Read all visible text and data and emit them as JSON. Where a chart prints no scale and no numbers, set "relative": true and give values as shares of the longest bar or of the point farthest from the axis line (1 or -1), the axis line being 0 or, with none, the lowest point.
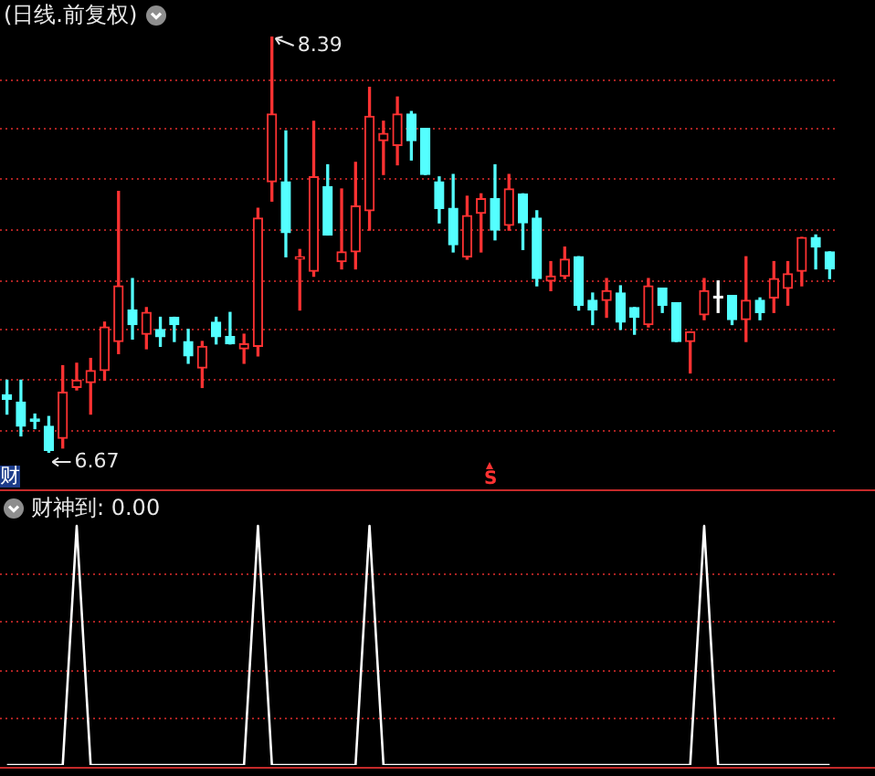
{
  "chart_data": [
    {
      "type": "candlestick",
      "title": "(日线.前复权)",
      "categories": [
        null,
        null,
        null,
        null,
        null,
        null,
        null,
        null,
        null,
        null,
        null,
        null,
        null,
        null,
        null,
        null,
        null,
        null,
        null,
        null,
        null,
        null,
        null,
        null,
        null,
        null,
        null,
        null,
        null,
        null,
        null,
        null,
        null,
        null,
        null,
        null,
        null,
        null,
        null,
        null,
        null,
        null,
        null,
        null,
        null,
        null,
        null,
        null,
        null,
        null,
        null,
        null,
        null,
        null,
        null,
        null,
        null,
        null,
        null,
        null
      ],
      "ohlc": [
        [
          6.91,
          6.97,
          6.83,
          6.89
        ],
        [
          6.88,
          6.97,
          6.74,
          6.78
        ],
        [
          6.81,
          6.83,
          6.77,
          6.8
        ],
        [
          6.78,
          6.82,
          6.67,
          6.68
        ],
        [
          6.73,
          7.03,
          6.69,
          6.92
        ],
        [
          6.94,
          7.04,
          6.93,
          6.97
        ],
        [
          6.96,
          7.06,
          6.83,
          7.01
        ],
        [
          7.01,
          7.21,
          6.97,
          7.19
        ],
        [
          7.13,
          7.75,
          7.08,
          7.36
        ],
        [
          7.26,
          7.39,
          7.14,
          7.2
        ],
        [
          7.16,
          7.27,
          7.1,
          7.25
        ],
        [
          7.18,
          7.23,
          7.11,
          7.15
        ],
        [
          7.23,
          7.23,
          7.13,
          7.2
        ],
        [
          7.13,
          7.18,
          7.04,
          7.07
        ],
        [
          7.02,
          7.13,
          6.94,
          7.11
        ],
        [
          7.21,
          7.23,
          7.12,
          7.15
        ],
        [
          7.15,
          7.25,
          7.12,
          7.12
        ],
        [
          7.1,
          7.16,
          7.04,
          7.12
        ],
        [
          7.11,
          7.68,
          7.07,
          7.64
        ],
        [
          7.79,
          8.39,
          7.71,
          8.07
        ],
        [
          7.79,
          8.0,
          7.48,
          7.58
        ],
        [
          7.47,
          7.51,
          7.26,
          7.48
        ],
        [
          7.42,
          8.04,
          7.4,
          7.81
        ],
        [
          7.77,
          7.86,
          7.57,
          7.57
        ],
        [
          7.46,
          7.76,
          7.43,
          7.5
        ],
        [
          7.5,
          7.87,
          7.43,
          7.69
        ],
        [
          7.67,
          8.18,
          7.59,
          8.06
        ],
        [
          7.96,
          8.04,
          7.82,
          7.99
        ],
        [
          7.94,
          8.14,
          7.86,
          8.07
        ],
        [
          8.07,
          8.08,
          7.88,
          7.96
        ],
        [
          8.01,
          8.01,
          7.82,
          7.82
        ],
        [
          7.79,
          7.81,
          7.62,
          7.68
        ],
        [
          7.68,
          7.82,
          7.5,
          7.53
        ],
        [
          7.48,
          7.73,
          7.47,
          7.65
        ],
        [
          7.66,
          7.74,
          7.5,
          7.72
        ],
        [
          7.72,
          7.86,
          7.55,
          7.59
        ],
        [
          7.61,
          7.82,
          7.59,
          7.76
        ],
        [
          7.74,
          7.74,
          7.51,
          7.62
        ],
        [
          7.64,
          7.67,
          7.36,
          7.39
        ],
        [
          7.38,
          7.46,
          7.34,
          7.4
        ],
        [
          7.4,
          7.52,
          7.39,
          7.47
        ],
        [
          7.48,
          7.48,
          7.26,
          7.28
        ],
        [
          7.3,
          7.33,
          7.2,
          7.26
        ],
        [
          7.3,
          7.39,
          7.23,
          7.34
        ],
        [
          7.33,
          7.36,
          7.18,
          7.21
        ],
        [
          7.27,
          7.27,
          7.16,
          7.23
        ],
        [
          7.2,
          7.39,
          7.19,
          7.36
        ],
        [
          7.35,
          7.35,
          7.25,
          7.28
        ],
        [
          7.29,
          7.29,
          7.13,
          7.13
        ],
        [
          7.13,
          7.17,
          7.0,
          7.17
        ],
        [
          7.24,
          7.39,
          7.22,
          7.34
        ],
        [
          7.31,
          7.38,
          7.25,
          7.31
        ],
        [
          7.32,
          7.32,
          7.2,
          7.22
        ],
        [
          7.22,
          7.48,
          7.13,
          7.3
        ],
        [
          7.3,
          7.31,
          7.22,
          7.25
        ],
        [
          7.31,
          7.46,
          7.25,
          7.39
        ],
        [
          7.35,
          7.46,
          7.28,
          7.41
        ],
        [
          7.42,
          7.56,
          7.36,
          7.56
        ],
        [
          7.56,
          7.57,
          7.43,
          7.52
        ],
        [
          7.5,
          7.5,
          7.39,
          7.43
        ]
      ],
      "colors": [
        "#54ffff",
        "#54ffff",
        "#54ffff",
        "#54ffff",
        "#ff3232",
        "#ff3232",
        "#ff3232",
        "#ff3232",
        "#ff3232",
        "#54ffff",
        "#ff3232",
        "#54ffff",
        "#54ffff",
        "#54ffff",
        "#ff3232",
        "#54ffff",
        "#54ffff",
        "#ff3232",
        "#ff3232",
        "#ff3232",
        "#54ffff",
        "#ff3232",
        "#ff3232",
        "#54ffff",
        "#ff3232",
        "#ff3232",
        "#ff3232",
        "#ff3232",
        "#ff3232",
        "#54ffff",
        "#54ffff",
        "#54ffff",
        "#54ffff",
        "#ff3232",
        "#ff3232",
        "#54ffff",
        "#ff3232",
        "#54ffff",
        "#54ffff",
        "#ff3232",
        "#ff3232",
        "#54ffff",
        "#54ffff",
        "#ff3232",
        "#54ffff",
        "#54ffff",
        "#ff3232",
        "#54ffff",
        "#54ffff",
        "#ff3232",
        "#ff3232",
        "#ffffff",
        "#54ffff",
        "#ff3232",
        "#54ffff",
        "#ff3232",
        "#ff3232",
        "#ff3232",
        "#54ffff",
        "#54ffff"
      ],
      "yticks": [
        {
          "value": 8.21,
          "label": null
        },
        {
          "value": 8.01,
          "label": null
        },
        {
          "value": 7.8,
          "label": null
        },
        {
          "value": 7.59,
          "label": null
        },
        {
          "value": 7.38,
          "label": null
        },
        {
          "value": 7.18,
          "label": null
        },
        {
          "value": 6.97,
          "label": null
        },
        {
          "value": 6.76,
          "label": null
        }
      ],
      "grid": "y",
      "tick_labels": false,
      "annotations": [
        "8.39",
        "6.67",
        "S",
        "财"
      ]
    },
    {
      "type": "line",
      "title": "财神到: 0.00",
      "categories": [
        null,
        null,
        null,
        null,
        null,
        null,
        null,
        null,
        null,
        null,
        null,
        null,
        null,
        null,
        null,
        null,
        null,
        null,
        null,
        null,
        null,
        null,
        null,
        null,
        null,
        null,
        null,
        null,
        null,
        null,
        null,
        null,
        null,
        null,
        null,
        null,
        null,
        null,
        null,
        null,
        null,
        null,
        null,
        null,
        null,
        null,
        null,
        null,
        null,
        null,
        null,
        null,
        null,
        null,
        null,
        null,
        null,
        null,
        null,
        null
      ],
      "series": [
        {
          "color": "#ffffff",
          "values": [
            0,
            0,
            0,
            0,
            0,
            1,
            0,
            0,
            0,
            0,
            0,
            0,
            0,
            0,
            0,
            0,
            0,
            0,
            1,
            0,
            0,
            0,
            0,
            0,
            0,
            0,
            1,
            0,
            0,
            0,
            0,
            0,
            0,
            0,
            0,
            0,
            0,
            0,
            0,
            0,
            0,
            0,
            0,
            0,
            0,
            0,
            0,
            0,
            0,
            0,
            1,
            0,
            0,
            0,
            0,
            0,
            0,
            0,
            0,
            0
          ]
        }
      ],
      "relative": true,
      "ref_lines": [
        {
          "axis": "y",
          "value": 0.2,
          "color": "#aa2222",
          "line_style": "dotted"
        },
        {
          "axis": "y",
          "value": 0.4,
          "color": "#aa2222",
          "line_style": "dotted"
        },
        {
          "axis": "y",
          "value": 0.6,
          "color": "#aa2222",
          "line_style": "dotted"
        },
        {
          "axis": "y",
          "value": 0.8,
          "color": "#aa2222",
          "line_style": "dotted"
        }
      ]
    }
  ]
}
